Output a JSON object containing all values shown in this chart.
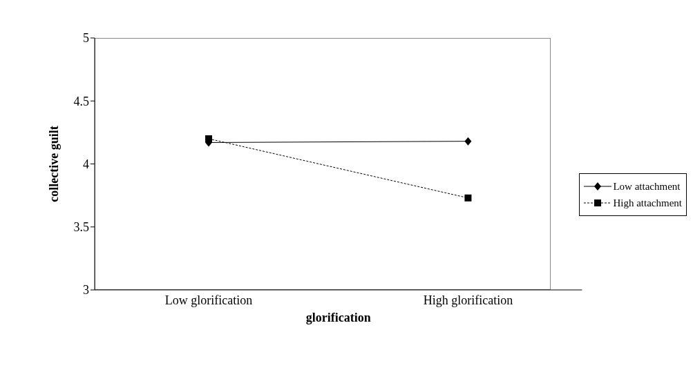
{
  "chart_data": {
    "type": "line",
    "xlabel": "glorification",
    "ylabel": "collective guilt",
    "categories": [
      "Low glorification",
      "High glorification"
    ],
    "series": [
      {
        "name": "Low attachment",
        "color": "#000000",
        "values": [
          4.17,
          4.18
        ],
        "marker": "diamond",
        "line_style": "solid"
      },
      {
        "name": "High attachment",
        "color": "#000000",
        "values": [
          4.2,
          3.73
        ],
        "marker": "square",
        "line_style": "dashed"
      }
    ],
    "ylim": [
      3,
      5
    ],
    "yticks": [
      3,
      3.5,
      4,
      4.5,
      5
    ],
    "grid": false,
    "legend": "right"
  }
}
